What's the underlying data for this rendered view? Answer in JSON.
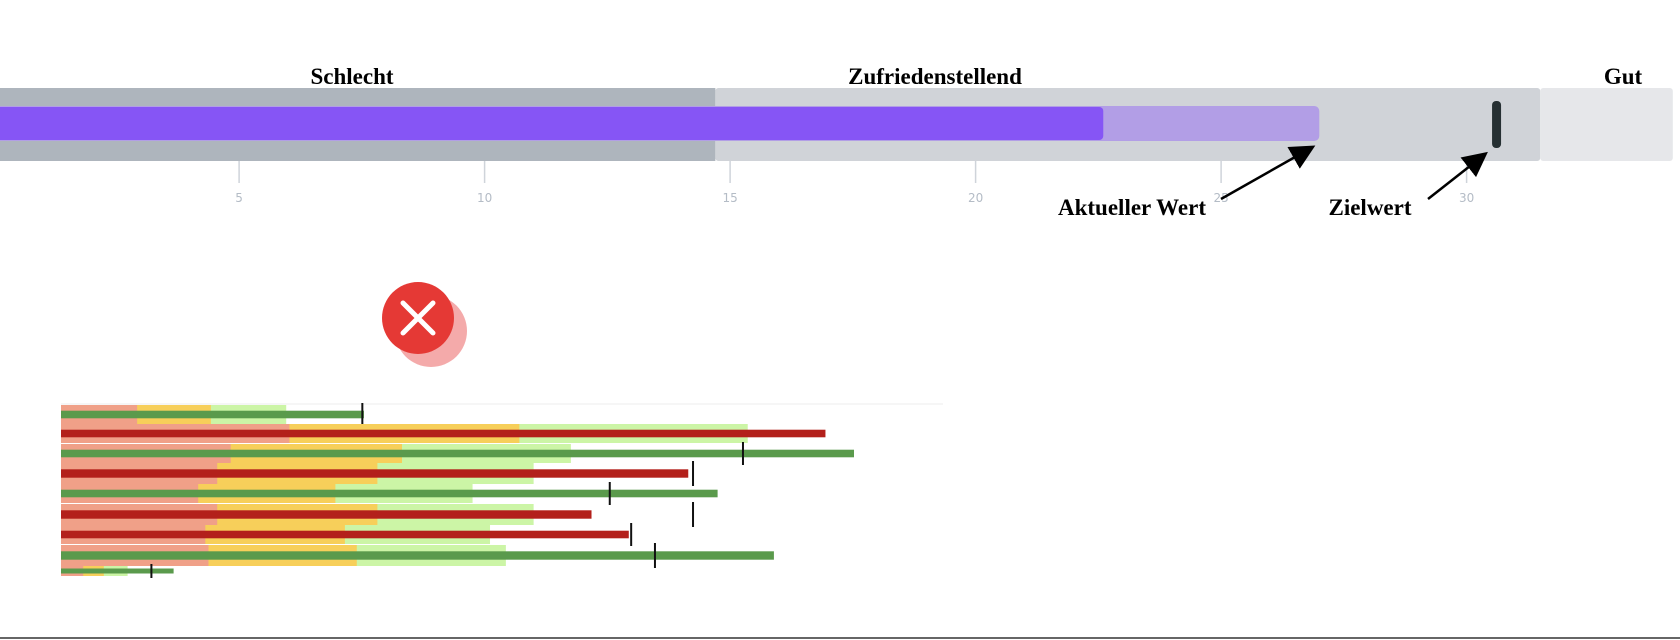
{
  "top_bullet": {
    "ranges": [
      {
        "label": "Schlecht",
        "end": 14.7,
        "color": "#aeb5bd"
      },
      {
        "label": "Zufriedenstellend",
        "end": 31.5,
        "color": "#d0d3d8"
      },
      {
        "label": "Gut",
        "end": 34.2,
        "color": "#e6e7ea"
      }
    ],
    "value": 22.6,
    "value_color": "#8655f5",
    "projected_value": 27.0,
    "projected_color": "#b29ee6",
    "target": 30.6,
    "target_color": "#263033",
    "ticks": [
      "5",
      "10",
      "15",
      "20",
      "25",
      "30"
    ],
    "annotations": {
      "current": "Aktueller Wert",
      "target": "Zielwert"
    }
  },
  "status_icon": {
    "name": "close-icon",
    "color": "#e53935"
  },
  "mini_bullets": {
    "unit_note": "",
    "rows": [
      {
        "bands": [
          9.6,
          18.9,
          28.4
        ],
        "value": 38.2,
        "target": 38.0,
        "bar_color": "#5a9a4c"
      },
      {
        "bands": [
          28.8,
          57.8,
          86.6
        ],
        "value": 96.4,
        "target": null,
        "bar_color": "#b3201b"
      },
      {
        "bands": [
          21.4,
          43.0,
          64.3
        ],
        "value": 100,
        "target": 86.0,
        "bar_color": "#5a9a4c"
      },
      {
        "bands": [
          19.7,
          39.9,
          59.6
        ],
        "value": 79.1,
        "target": 79.7,
        "bar_color": "#b3201b"
      },
      {
        "bands": [
          17.3,
          34.6,
          51.9
        ],
        "value": 82.8,
        "target": 69.2,
        "bar_color": "#5a9a4c"
      },
      {
        "bands": [
          19.7,
          39.9,
          59.6
        ],
        "value": 66.9,
        "target": 79.7,
        "bar_color": "#b3201b"
      },
      {
        "bands": [
          18.2,
          35.8,
          54.1
        ],
        "value": 71.6,
        "target": 71.9,
        "bar_color": "#b3201b"
      },
      {
        "bands": [
          18.6,
          37.3,
          56.1
        ],
        "value": 89.9,
        "target": 74.9,
        "bar_color": "#5a9a4c"
      },
      {
        "bands": [
          2.8,
          5.4,
          8.4
        ],
        "value": 14.2,
        "target": 11.4,
        "bar_color": "#5a9a4c"
      }
    ],
    "band_colors": [
      "#f0a088",
      "#f7cf5a",
      "#ccf5a6"
    ]
  }
}
